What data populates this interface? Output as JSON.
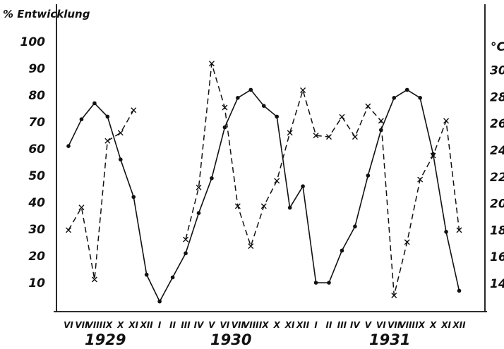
{
  "chart_data": {
    "type": "line",
    "title": "",
    "ylabel_left": "% Entwicklung",
    "ylabel_right": "°C",
    "ylim_left": [
      0,
      108
    ],
    "ylim_right": [
      12,
      32
    ],
    "left_ticks": [
      "10",
      "20",
      "30",
      "40",
      "50",
      "60",
      "70",
      "80",
      "90",
      "100"
    ],
    "right_ticks": [
      "14",
      "16",
      "18",
      "20",
      "22",
      "24",
      "26",
      "28",
      "30"
    ],
    "month_labels": [
      "VI",
      "VII",
      "VIII",
      "IX",
      "X",
      "XI",
      "XII",
      "I",
      "II",
      "III",
      "IV",
      "V",
      "VI",
      "VII",
      "VIII",
      "IX",
      "X",
      "XI",
      "XII",
      "I",
      "II",
      "III",
      "IV",
      "V",
      "VI",
      "VII",
      "VIII",
      "IX",
      "X",
      "XI",
      "XII"
    ],
    "year_labels": [
      "1929",
      "1930",
      "1931"
    ],
    "series": [
      {
        "axis": "left",
        "style": "solid",
        "marker": "dot",
        "values": [
          61,
          71,
          77,
          72,
          56,
          42,
          13,
          3,
          12,
          21,
          36,
          49,
          68,
          79,
          82,
          76,
          72,
          38,
          46,
          10,
          10,
          22,
          31,
          50,
          67,
          79,
          82,
          79,
          58,
          29,
          7
        ]
      },
      {
        "axis": "right",
        "style": "dashed",
        "marker": "x",
        "segments": [
          {
            "start": 0,
            "values": [
              18,
              19.7,
              14.3,
              24.7,
              25.3,
              27
            ]
          },
          {
            "start": 9,
            "values": [
              17.3,
              21.2,
              30.5,
              27.2,
              19.8,
              16.8,
              19.8,
              21.7,
              25.3,
              28.5,
              25.1,
              25,
              26.5,
              25,
              27.3,
              26.2,
              13.1,
              17.1,
              21.8,
              23.6,
              26.2,
              18
            ]
          }
        ]
      }
    ]
  }
}
